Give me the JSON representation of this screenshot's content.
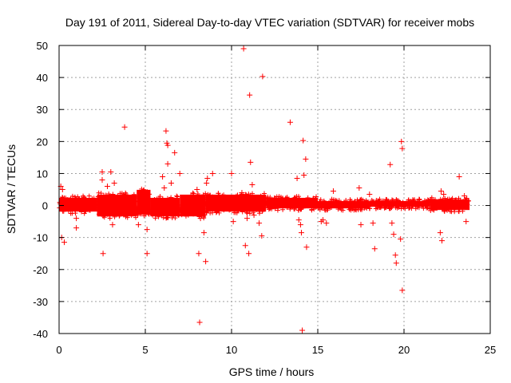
{
  "chart_data": {
    "type": "scatter",
    "title": "Day 191 of 2011, Sidereal Day-to-day VTEC variation (SDTVAR) for receiver mobs",
    "xlabel": "GPS time / hours",
    "ylabel": "SDTVAR / TECUs",
    "xlim": [
      0,
      25
    ],
    "ylim": [
      -40,
      50
    ],
    "xticks": [
      0,
      5,
      10,
      15,
      20,
      25
    ],
    "yticks": [
      -40,
      -30,
      -20,
      -10,
      0,
      10,
      20,
      30,
      40,
      50
    ],
    "grid": true,
    "marker": "+",
    "colors": {
      "series": "#ff0000",
      "axis": "#000000",
      "grid": "#a0a0a0"
    },
    "series": [
      {
        "name": "SDTVAR",
        "band_segments": [
          {
            "x_start": 0.0,
            "x_end": 2.2,
            "low": -2.5,
            "high": 3.0
          },
          {
            "x_start": 2.2,
            "x_end": 4.5,
            "low": -4.0,
            "high": 4.0
          },
          {
            "x_start": 4.5,
            "x_end": 5.3,
            "low": -3.5,
            "high": 5.5
          },
          {
            "x_start": 5.3,
            "x_end": 7.0,
            "low": -4.0,
            "high": 3.0
          },
          {
            "x_start": 7.0,
            "x_end": 8.5,
            "low": -4.0,
            "high": 4.0
          },
          {
            "x_start": 8.5,
            "x_end": 12.0,
            "low": -2.5,
            "high": 4.0
          },
          {
            "x_start": 12.0,
            "x_end": 15.0,
            "low": -1.5,
            "high": 3.0
          },
          {
            "x_start": 15.0,
            "x_end": 18.0,
            "low": -1.5,
            "high": 2.0
          },
          {
            "x_start": 18.0,
            "x_end": 21.5,
            "low": -1.0,
            "high": 2.0
          },
          {
            "x_start": 21.5,
            "x_end": 23.8,
            "low": -2.0,
            "high": 2.5
          }
        ],
        "points": [
          [
            0.1,
            6
          ],
          [
            0.15,
            -10
          ],
          [
            0.3,
            -11.5
          ],
          [
            0.2,
            5
          ],
          [
            1.0,
            -7
          ],
          [
            1.0,
            -4
          ],
          [
            2.5,
            10.5
          ],
          [
            2.5,
            8
          ],
          [
            2.55,
            -15
          ],
          [
            2.8,
            6
          ],
          [
            3.0,
            10.5
          ],
          [
            3.1,
            -6
          ],
          [
            3.2,
            7
          ],
          [
            3.8,
            24.5
          ],
          [
            4.2,
            -3
          ],
          [
            4.6,
            -6
          ],
          [
            5.1,
            -7.5
          ],
          [
            5.1,
            -15
          ],
          [
            6.0,
            9
          ],
          [
            6.1,
            5.5
          ],
          [
            6.2,
            23.3
          ],
          [
            6.25,
            19.5
          ],
          [
            6.3,
            18.8
          ],
          [
            6.3,
            13
          ],
          [
            6.5,
            7
          ],
          [
            6.7,
            16.5
          ],
          [
            7.0,
            10
          ],
          [
            7.2,
            -1.5
          ],
          [
            8.0,
            5
          ],
          [
            8.1,
            -15
          ],
          [
            8.15,
            -36.5
          ],
          [
            8.2,
            -4
          ],
          [
            8.4,
            -8.5
          ],
          [
            8.5,
            -17.5
          ],
          [
            8.55,
            7
          ],
          [
            8.6,
            8.5
          ],
          [
            8.9,
            10
          ],
          [
            10.0,
            10
          ],
          [
            10.1,
            -5
          ],
          [
            10.6,
            4
          ],
          [
            10.7,
            49
          ],
          [
            10.8,
            -12.5
          ],
          [
            10.9,
            -4
          ],
          [
            11.0,
            -15
          ],
          [
            11.05,
            34.5
          ],
          [
            11.1,
            13.5
          ],
          [
            11.2,
            6.5
          ],
          [
            11.3,
            -3
          ],
          [
            11.6,
            -5.5
          ],
          [
            11.7,
            1
          ],
          [
            11.75,
            -9.5
          ],
          [
            11.8,
            40.3
          ],
          [
            13.4,
            26
          ],
          [
            13.8,
            8.5
          ],
          [
            13.9,
            -4.5
          ],
          [
            14.0,
            -6
          ],
          [
            14.05,
            -8.5
          ],
          [
            14.1,
            -39
          ],
          [
            14.15,
            20.3
          ],
          [
            14.2,
            9.5
          ],
          [
            14.3,
            14.5
          ],
          [
            14.35,
            -13
          ],
          [
            15.2,
            -5
          ],
          [
            15.3,
            -4.5
          ],
          [
            15.5,
            -5.5
          ],
          [
            15.9,
            4.5
          ],
          [
            17.4,
            5.5
          ],
          [
            17.5,
            -6
          ],
          [
            18.0,
            3.5
          ],
          [
            18.2,
            -5.5
          ],
          [
            18.3,
            -13.5
          ],
          [
            19.2,
            12.8
          ],
          [
            19.3,
            -5.5
          ],
          [
            19.4,
            -9
          ],
          [
            19.5,
            -15.5
          ],
          [
            19.55,
            -18
          ],
          [
            19.8,
            -10.5
          ],
          [
            19.85,
            20
          ],
          [
            19.9,
            17.8
          ],
          [
            19.9,
            -26.5
          ],
          [
            22.1,
            -8.5
          ],
          [
            22.15,
            4.5
          ],
          [
            22.2,
            -11
          ],
          [
            22.3,
            3.5
          ],
          [
            23.2,
            9
          ],
          [
            23.5,
            3
          ],
          [
            23.6,
            -5
          ]
        ]
      }
    ]
  }
}
